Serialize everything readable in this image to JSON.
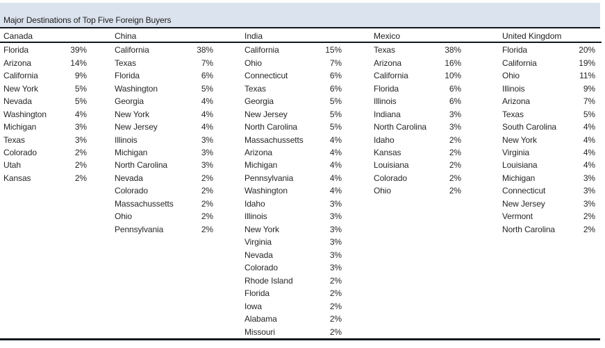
{
  "title": "Major Destinations of Top Five Foreign Buyers",
  "colors": {
    "band_fill": "#dbe3ee",
    "rule": "#10161d",
    "text": "#262626"
  },
  "chart_data": {
    "type": "table",
    "title": "Major Destinations of Top Five Foreign Buyers",
    "groups": [
      {
        "buyer": "Canada",
        "rows": [
          {
            "state": "Florida",
            "pct": "39%"
          },
          {
            "state": "Arizona",
            "pct": "14%"
          },
          {
            "state": "California",
            "pct": "9%"
          },
          {
            "state": "New York",
            "pct": "5%"
          },
          {
            "state": "Nevada",
            "pct": "5%"
          },
          {
            "state": "Washington",
            "pct": "4%"
          },
          {
            "state": "Michigan",
            "pct": "3%"
          },
          {
            "state": "Texas",
            "pct": "3%"
          },
          {
            "state": "Colorado",
            "pct": "2%"
          },
          {
            "state": "Utah",
            "pct": "2%"
          },
          {
            "state": "Kansas",
            "pct": "2%"
          }
        ]
      },
      {
        "buyer": "China",
        "rows": [
          {
            "state": "California",
            "pct": "38%"
          },
          {
            "state": "Texas",
            "pct": "7%"
          },
          {
            "state": "Florida",
            "pct": "6%"
          },
          {
            "state": "Washington",
            "pct": "5%"
          },
          {
            "state": "Georgia",
            "pct": "4%"
          },
          {
            "state": "New York",
            "pct": "4%"
          },
          {
            "state": "New Jersey",
            "pct": "4%"
          },
          {
            "state": "Illinois",
            "pct": "3%"
          },
          {
            "state": "Michigan",
            "pct": "3%"
          },
          {
            "state": "North Carolina",
            "pct": "3%"
          },
          {
            "state": "Nevada",
            "pct": "2%"
          },
          {
            "state": "Colorado",
            "pct": "2%"
          },
          {
            "state": "Massachussetts",
            "pct": "2%"
          },
          {
            "state": "Ohio",
            "pct": "2%"
          },
          {
            "state": "Pennsylvania",
            "pct": "2%"
          }
        ]
      },
      {
        "buyer": "India",
        "rows": [
          {
            "state": "California",
            "pct": "15%"
          },
          {
            "state": "Ohio",
            "pct": "7%"
          },
          {
            "state": "Connecticut",
            "pct": "6%"
          },
          {
            "state": "Texas",
            "pct": "6%"
          },
          {
            "state": "Georgia",
            "pct": "5%"
          },
          {
            "state": "New Jersey",
            "pct": "5%"
          },
          {
            "state": "North Carolina",
            "pct": "5%"
          },
          {
            "state": "Massachussetts",
            "pct": "4%"
          },
          {
            "state": "Arizona",
            "pct": "4%"
          },
          {
            "state": "Michigan",
            "pct": "4%"
          },
          {
            "state": "Pennsylvania",
            "pct": "4%"
          },
          {
            "state": "Washington",
            "pct": "4%"
          },
          {
            "state": "Idaho",
            "pct": "3%"
          },
          {
            "state": "Illinois",
            "pct": "3%"
          },
          {
            "state": "New York",
            "pct": "3%"
          },
          {
            "state": "Virginia",
            "pct": "3%"
          },
          {
            "state": "Nevada",
            "pct": "3%"
          },
          {
            "state": "Colorado",
            "pct": "3%"
          },
          {
            "state": "Rhode Island",
            "pct": "2%"
          },
          {
            "state": "Florida",
            "pct": "2%"
          },
          {
            "state": "Iowa",
            "pct": "2%"
          },
          {
            "state": "Alabama",
            "pct": "2%"
          },
          {
            "state": "Missouri",
            "pct": "2%"
          }
        ]
      },
      {
        "buyer": "Mexico",
        "rows": [
          {
            "state": "Texas",
            "pct": "38%"
          },
          {
            "state": "Arizona",
            "pct": "16%"
          },
          {
            "state": "California",
            "pct": "10%"
          },
          {
            "state": "Florida",
            "pct": "6%"
          },
          {
            "state": "Illinois",
            "pct": "6%"
          },
          {
            "state": "Indiana",
            "pct": "3%"
          },
          {
            "state": "North Carolina",
            "pct": "3%"
          },
          {
            "state": "Idaho",
            "pct": "2%"
          },
          {
            "state": "Kansas",
            "pct": "2%"
          },
          {
            "state": "Louisiana",
            "pct": "2%"
          },
          {
            "state": "Colorado",
            "pct": "2%"
          },
          {
            "state": "Ohio",
            "pct": "2%"
          }
        ]
      },
      {
        "buyer": "United Kingdom",
        "rows": [
          {
            "state": "Florida",
            "pct": "20%"
          },
          {
            "state": "California",
            "pct": "19%"
          },
          {
            "state": "Ohio",
            "pct": "11%"
          },
          {
            "state": "Illinois",
            "pct": "9%"
          },
          {
            "state": "Arizona",
            "pct": "7%"
          },
          {
            "state": "Texas",
            "pct": "5%"
          },
          {
            "state": "South Carolina",
            "pct": "4%"
          },
          {
            "state": "New York",
            "pct": "4%"
          },
          {
            "state": "Virginia",
            "pct": "4%"
          },
          {
            "state": "Louisiana",
            "pct": "4%"
          },
          {
            "state": "Michigan",
            "pct": "3%"
          },
          {
            "state": "Connecticut",
            "pct": "3%"
          },
          {
            "state": "New Jersey",
            "pct": "3%"
          },
          {
            "state": "Vermont",
            "pct": "2%"
          },
          {
            "state": "North Carolina",
            "pct": "2%"
          }
        ]
      }
    ]
  }
}
